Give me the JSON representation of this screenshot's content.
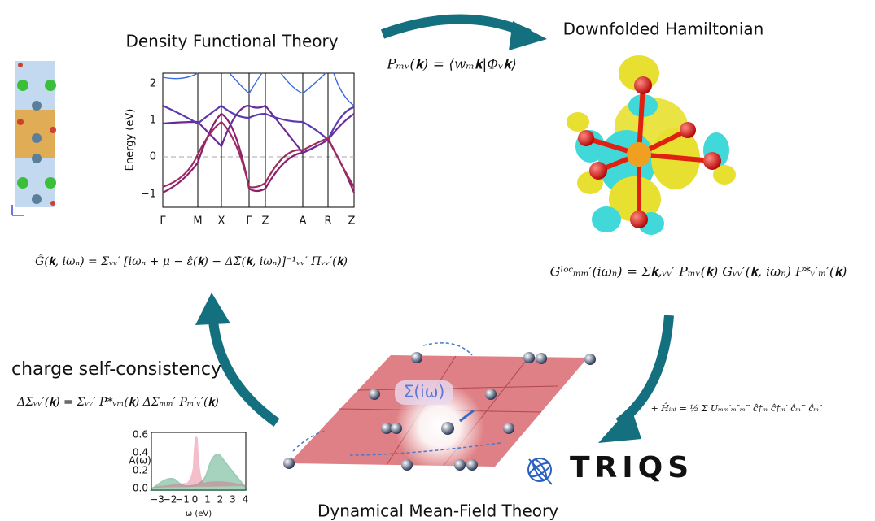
{
  "titles": {
    "dft": "Density Functional Theory",
    "hamiltonian": "Downfolded Hamiltonian",
    "dmft": "Dynamical Mean-Field Theory",
    "csc": "charge self-consistency"
  },
  "triqs": "TRIQS",
  "sigma": "Σ(iω)",
  "formulas": {
    "projector": "Pₘᵥ(𝐤) = ⟨wₘ𝐤|Φᵥ𝐤⟩",
    "green": "Ĝ(𝐤, iωₙ) = Σᵥᵥ′ [iωₙ + μ − ε̂(𝐤) − ΔΣ̂(𝐤, iωₙ)]⁻¹ᵥᵥ′ Πᵥᵥ′(𝐤)",
    "gloc": "Gˡᵒᶜₘₘ′(iωₙ) = Σ𝐤,ᵥᵥ′ Pₘᵥ(𝐤) Gᵥᵥ′(𝐤, iωₙ) P*ᵥ′ₘ′(𝐤)",
    "dsigma": "ΔΣᵥᵥ′(𝐤) = Σᵥᵥ′ P*ᵥₘ(𝐤) ΔΣₘₘ′ Pₘ′ᵥ′(𝐤)",
    "hint": "+ Ĥᵢₙₜ = ½ Σ Uₘₘ′ₘ″ₘ‴ ĉ†ₘ ĉ†ₘ′ ĉₘ‴ ĉₘ″"
  },
  "band_plot": {
    "y_label": "Energy (eV)",
    "yticks": [
      "2",
      "1",
      "0",
      "−1"
    ],
    "xticks": [
      "Γ",
      "M",
      "X",
      "Γ",
      "Z",
      "A",
      "R",
      "Z"
    ]
  },
  "spectral_plot": {
    "y_label": "A(ω)",
    "x_label": "ω (eV)",
    "yticks": [
      "0.6",
      "0.4",
      "0.2",
      "0.0"
    ],
    "xticks": [
      "−3",
      "−2",
      "−1",
      "0",
      "1",
      "2",
      "3",
      "4"
    ]
  }
}
